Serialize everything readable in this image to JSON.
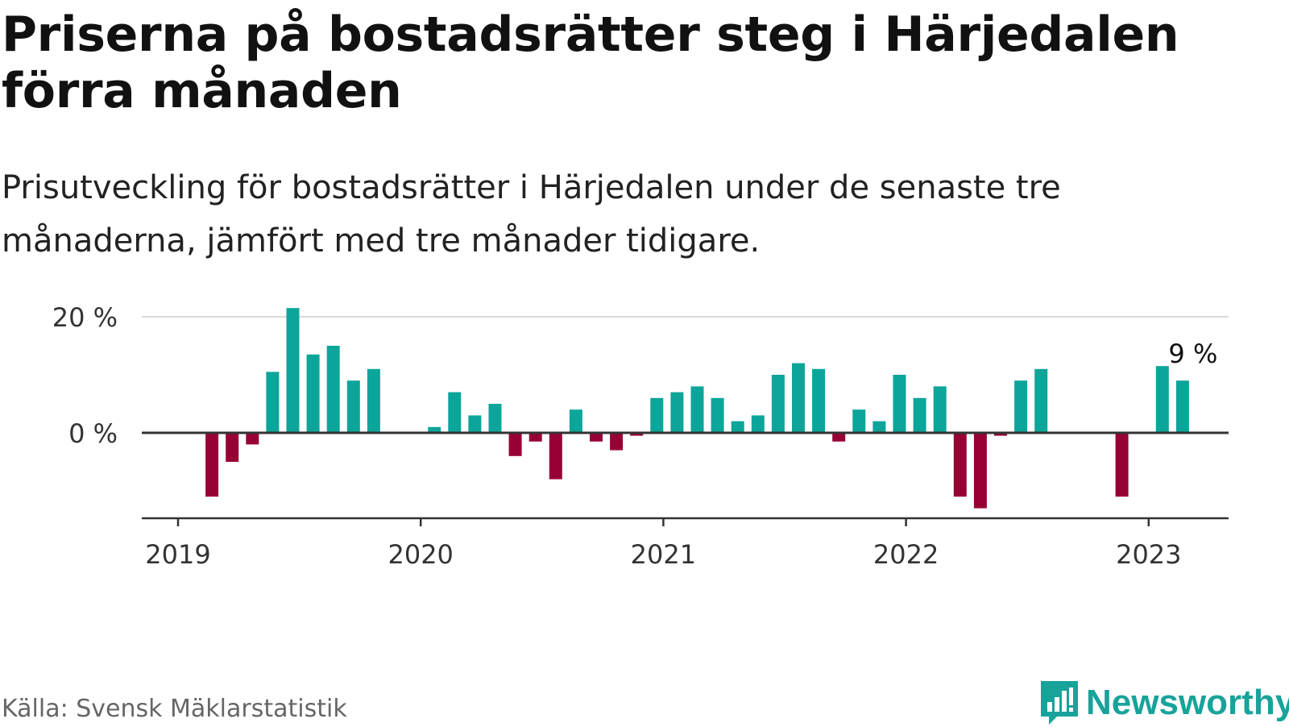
{
  "title": "Priserna på bostadsrätter steg i Härjedalen förra månaden",
  "subtitle": "Prisutveckling för bostadsrätter i Härjedalen under de senaste tre månaderna, jämfört med tre månader tidigare.",
  "source": "Källa: Svensk Mäklarstatistik",
  "brand": "Newsworthy",
  "colors": {
    "positive": "#0ca59a",
    "negative": "#970035",
    "axis": "#333333",
    "grid": "#d9d9d9"
  },
  "chart_data": {
    "type": "bar",
    "x": [
      "2019-01",
      "2019-02",
      "2019-03",
      "2019-04",
      "2019-05",
      "2019-06",
      "2019-07",
      "2019-08",
      "2019-09",
      "2019-10",
      "2019-11",
      "2019-12",
      "2020-01",
      "2020-02",
      "2020-03",
      "2020-04",
      "2020-05",
      "2020-06",
      "2020-07",
      "2020-08",
      "2020-09",
      "2020-10",
      "2020-11",
      "2020-12",
      "2021-01",
      "2021-02",
      "2021-03",
      "2021-04",
      "2021-05",
      "2021-06",
      "2021-07",
      "2021-08",
      "2021-09",
      "2021-10",
      "2021-11",
      "2021-12",
      "2022-01",
      "2022-02",
      "2022-03",
      "2022-04",
      "2022-05",
      "2022-06",
      "2022-07",
      "2022-08",
      "2022-09",
      "2022-10",
      "2022-11",
      "2022-12",
      "2023-01",
      "2023-02"
    ],
    "values": [
      0,
      -11,
      -5,
      -2,
      10.5,
      21.5,
      13.5,
      15,
      9,
      11,
      0,
      0,
      1,
      7,
      3,
      5,
      -4,
      -1.5,
      -8,
      4,
      -1.5,
      -3,
      -0.5,
      6,
      7,
      8,
      6,
      2,
      3,
      10,
      12,
      11,
      -1.5,
      4,
      2,
      10,
      6,
      8,
      -11,
      -13,
      -0.5,
      9,
      11,
      0,
      0,
      0,
      -11,
      0,
      11.5,
      9
    ],
    "ylim": [
      -15,
      22
    ],
    "yticks": [
      0,
      20
    ],
    "ytick_labels": [
      "0 %",
      "20 %"
    ],
    "xtick_labels": [
      "2019",
      "2020",
      "2021",
      "2022",
      "2023"
    ],
    "annotation": {
      "x": "2023-02",
      "text": "9 %"
    },
    "grid": true
  }
}
